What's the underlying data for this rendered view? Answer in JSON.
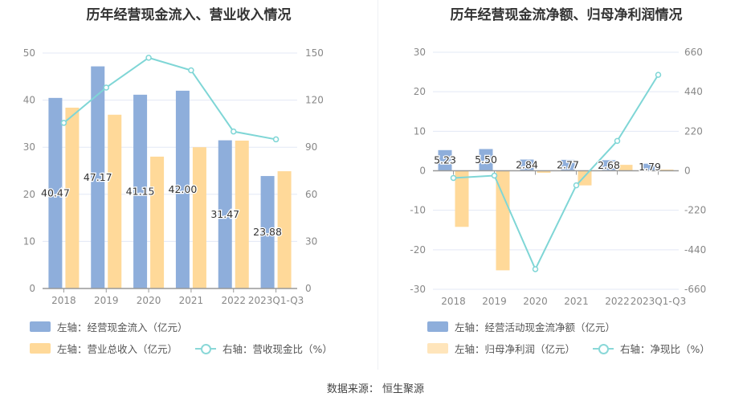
{
  "colors": {
    "blue": "#8eaedb",
    "orange": "#ffd999",
    "line": "#7fd6d6",
    "grid": "#e3e8f5"
  },
  "chart_data": [
    {
      "type": "bar",
      "title": "历年经营现金流入、营业收入情况",
      "categories": [
        "2018",
        "2019",
        "2020",
        "2021",
        "2022",
        "2023Q1-Q3"
      ],
      "ylim": [
        0,
        50
      ],
      "yticks": [
        0,
        10,
        20,
        30,
        40,
        50
      ],
      "y2lim": [
        0,
        150
      ],
      "y2ticks": [
        0,
        30,
        60,
        90,
        120,
        150
      ],
      "series": [
        {
          "name": "左轴：经营现金流入（亿元）",
          "axis": "left",
          "kind": "bar",
          "values": [
            40.47,
            47.17,
            41.15,
            42.0,
            31.47,
            23.88
          ],
          "labels": [
            "40.47",
            "47.17",
            "41.15",
            "42.00",
            "31.47",
            "23.88"
          ]
        },
        {
          "name": "左轴：营业总收入（亿元）",
          "axis": "left",
          "kind": "bar",
          "values": [
            38.4,
            36.9,
            28.0,
            30.0,
            31.4,
            24.9
          ]
        },
        {
          "name": "右轴：营收现金比（%）",
          "axis": "right",
          "kind": "line",
          "values": [
            105.5,
            128,
            147,
            139,
            100,
            95
          ]
        }
      ]
    },
    {
      "type": "bar",
      "title": "历年经营现金流净额、归母净利润情况",
      "categories": [
        "2018",
        "2019",
        "2020",
        "2021",
        "2022",
        "2023Q1-Q3"
      ],
      "ylim": [
        -30,
        30
      ],
      "yticks": [
        -30,
        -20,
        -10,
        0,
        10,
        20,
        30
      ],
      "y2lim": [
        -660,
        660
      ],
      "y2ticks": [
        -660,
        -440,
        -220,
        0,
        220,
        440,
        660
      ],
      "series": [
        {
          "name": "左轴：经营活动现金流净额（亿元）",
          "axis": "left",
          "kind": "bar",
          "values": [
            5.23,
            5.5,
            2.84,
            2.77,
            2.68,
            1.79
          ],
          "labels": [
            "5.23",
            "5.50",
            "2.84",
            "2.77",
            "2.68",
            "1.79"
          ]
        },
        {
          "name": "左轴：归母净利润（亿元）",
          "axis": "left",
          "kind": "bar",
          "values": [
            -14.2,
            -25.2,
            -0.5,
            -3.7,
            1.5,
            0.3
          ]
        },
        {
          "name": "右轴：净现比（%）",
          "axis": "right",
          "kind": "line",
          "values": [
            -40,
            -27,
            -548,
            -81,
            166,
            534
          ]
        }
      ]
    }
  ],
  "source": "数据来源：  恒生聚源"
}
